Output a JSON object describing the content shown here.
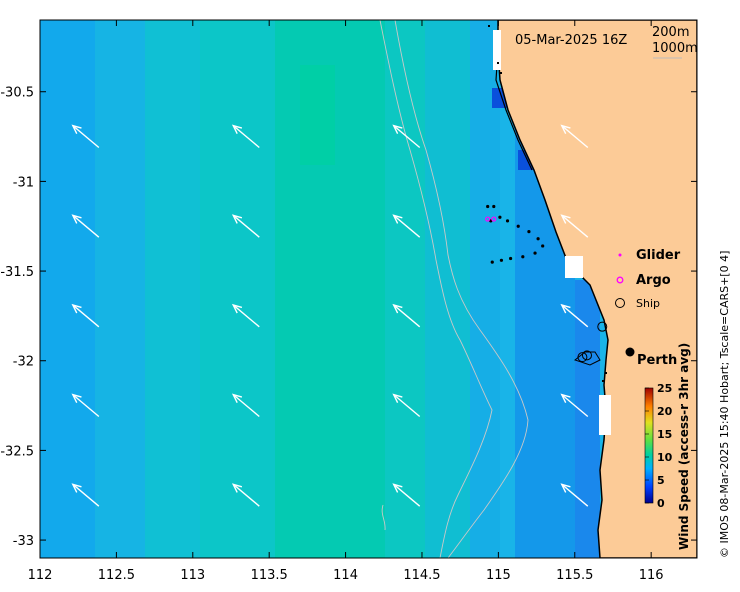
{
  "map": {
    "title": "05-Mar-2025 16Z",
    "depth_labels": [
      "200m",
      "1000m"
    ],
    "x_ticks": [
      "112",
      "112.5",
      "113",
      "113.5",
      "114",
      "114.5",
      "115",
      "115.5",
      "116"
    ],
    "y_ticks": [
      "-30.5",
      "-31",
      "-31.5",
      "-32",
      "-32.5",
      "-33"
    ],
    "x_range": [
      112,
      116.3
    ],
    "y_range": [
      -33.1,
      -30.1
    ],
    "place_label": "Perth",
    "credit": "© IMOS 08-Mar-2025 15:40 Hobart; Tscale=CARS+[0 4]"
  },
  "legend": {
    "glider": "Glider",
    "argo": "Argo",
    "ship": "Ship"
  },
  "colorbar": {
    "label": "Wind Speed (access-r 3hr avg)",
    "ticks": [
      "0",
      "5",
      "10",
      "15",
      "20",
      "25"
    ],
    "range": [
      0,
      25
    ]
  },
  "colors": {
    "land": "#fccb97",
    "coast": "#000000",
    "bathymetry": "#bbbbbb",
    "arrow": "#ffffff",
    "glider": "#ff00ff",
    "argo": "#ff00ff"
  },
  "glider_track": [
    [
      114.93,
      -31.14
    ],
    [
      114.97,
      -31.14
    ],
    [
      115.01,
      -31.2
    ],
    [
      115.06,
      -31.22
    ],
    [
      115.13,
      -31.25
    ],
    [
      115.2,
      -31.28
    ],
    [
      115.26,
      -31.32
    ],
    [
      115.29,
      -31.36
    ],
    [
      115.24,
      -31.4
    ],
    [
      115.16,
      -31.42
    ],
    [
      115.08,
      -31.43
    ],
    [
      115.02,
      -31.44
    ],
    [
      114.96,
      -31.45
    ],
    [
      114.95,
      -31.22
    ]
  ],
  "argo_floats": [
    [
      114.93,
      -31.21
    ],
    [
      114.97,
      -31.21
    ]
  ],
  "ships": [
    [
      115.68,
      -31.81
    ],
    [
      115.55,
      -31.98
    ],
    [
      115.58,
      -31.97
    ]
  ],
  "wind_arrow_grid": {
    "lon": [
      112.3,
      113.35,
      114.4,
      115.5
    ],
    "lat": [
      -30.75,
      -31.25,
      -31.75,
      -32.25,
      -32.75
    ],
    "direction_deg": 310
  }
}
